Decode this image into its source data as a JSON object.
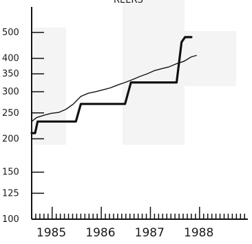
{
  "chart_data": {
    "type": "line",
    "title": "REERS",
    "y_scale": "log",
    "y_ticks": [
      100,
      125,
      150,
      200,
      250,
      300,
      350,
      400,
      500
    ],
    "ylim": [
      100,
      560
    ],
    "x_ticks": [
      "1985",
      "1986",
      "1987",
      "1988"
    ],
    "xlim": [
      1984.6,
      1989.0
    ],
    "minor_ticks_per_year": 12,
    "series": [
      {
        "style": "thick-step",
        "x": [
          1984.6,
          1984.67,
          1984.72,
          1985.5,
          1985.6,
          1986.5,
          1986.62,
          1987.55,
          1987.65,
          1987.72,
          1987.85
        ],
        "values": [
          210,
          210,
          232,
          232,
          270,
          270,
          325,
          325,
          460,
          480,
          480
        ]
      },
      {
        "style": "thin-line",
        "x": [
          1984.6,
          1984.7,
          1984.85,
          1985.0,
          1985.15,
          1985.3,
          1985.45,
          1985.6,
          1985.75,
          1985.9,
          1986.05,
          1986.2,
          1986.35,
          1986.5,
          1986.65,
          1986.8,
          1986.95,
          1987.1,
          1987.25,
          1987.4,
          1987.55,
          1987.7,
          1987.85,
          1987.95
        ],
        "values": [
          232,
          240,
          245,
          249,
          251,
          258,
          270,
          288,
          296,
          300,
          305,
          310,
          318,
          325,
          333,
          342,
          350,
          360,
          366,
          372,
          382,
          390,
          405,
          410
        ]
      }
    ]
  }
}
